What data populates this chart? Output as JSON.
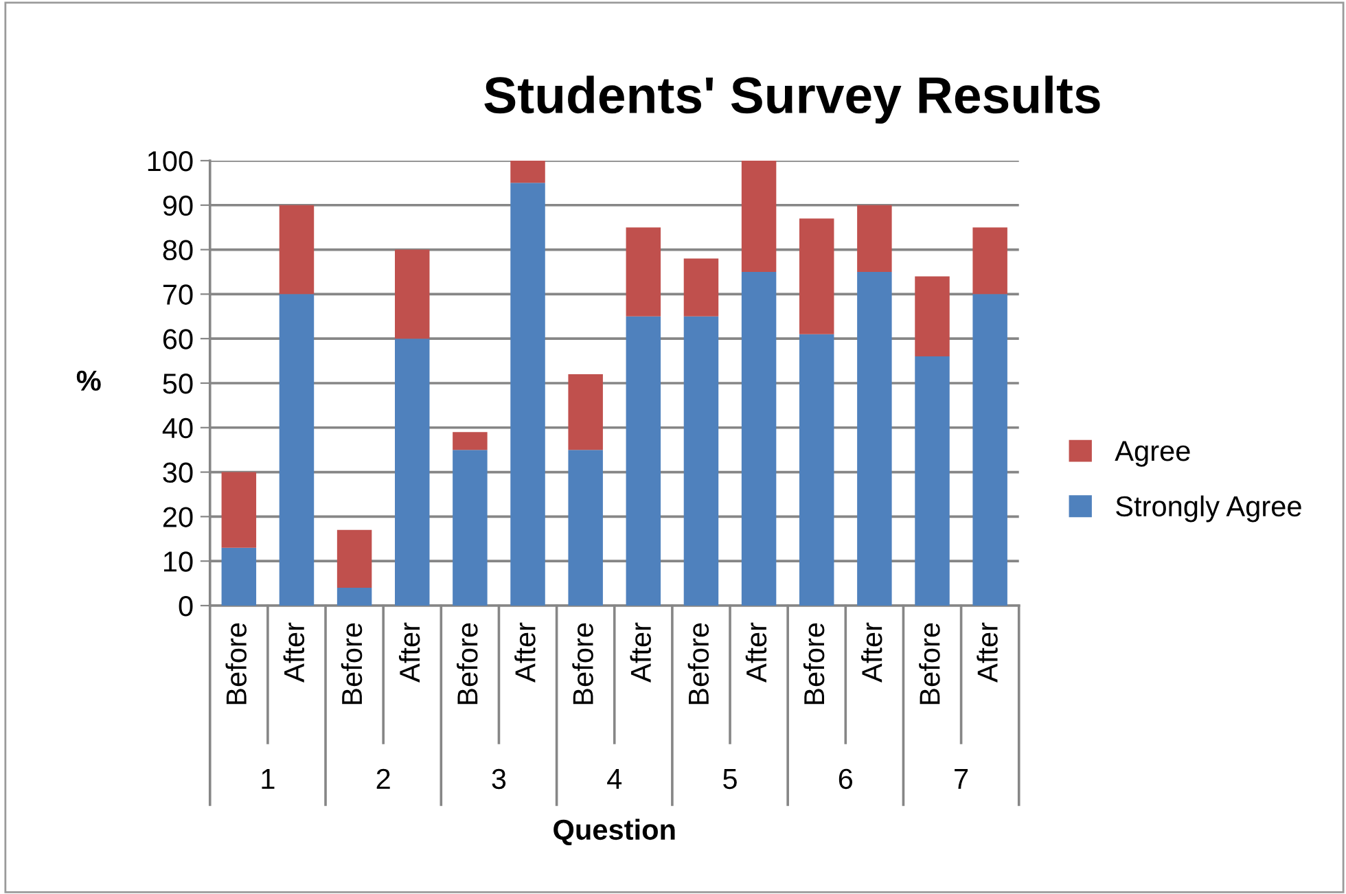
{
  "chart_data": {
    "type": "bar",
    "title": "Students' Survey Results",
    "xlabel": "Question",
    "ylabel": "%",
    "categories": [
      "Before",
      "After",
      "Before",
      "After",
      "Before",
      "After",
      "Before",
      "After",
      "Before",
      "After",
      "Before",
      "After",
      "Before",
      "After"
    ],
    "annotations": [
      "1",
      "2",
      "3",
      "4",
      "5",
      "6",
      "7"
    ],
    "stacked": true,
    "series": [
      {
        "name": "Strongly Agree",
        "color": "#4f81bd",
        "values": [
          13,
          70,
          4,
          60,
          35,
          95,
          35,
          65,
          65,
          75,
          61,
          75,
          56,
          70
        ]
      },
      {
        "name": "Agree",
        "color": "#c0504d",
        "values": [
          17,
          20,
          13,
          20,
          4,
          5,
          17,
          20,
          13,
          25,
          26,
          15,
          18,
          15
        ]
      }
    ],
    "ylim": [
      0,
      100
    ],
    "yticks": [
      0,
      10,
      20,
      30,
      40,
      50,
      60,
      70,
      80,
      90,
      100
    ],
    "grid": "y",
    "legend": "right"
  }
}
